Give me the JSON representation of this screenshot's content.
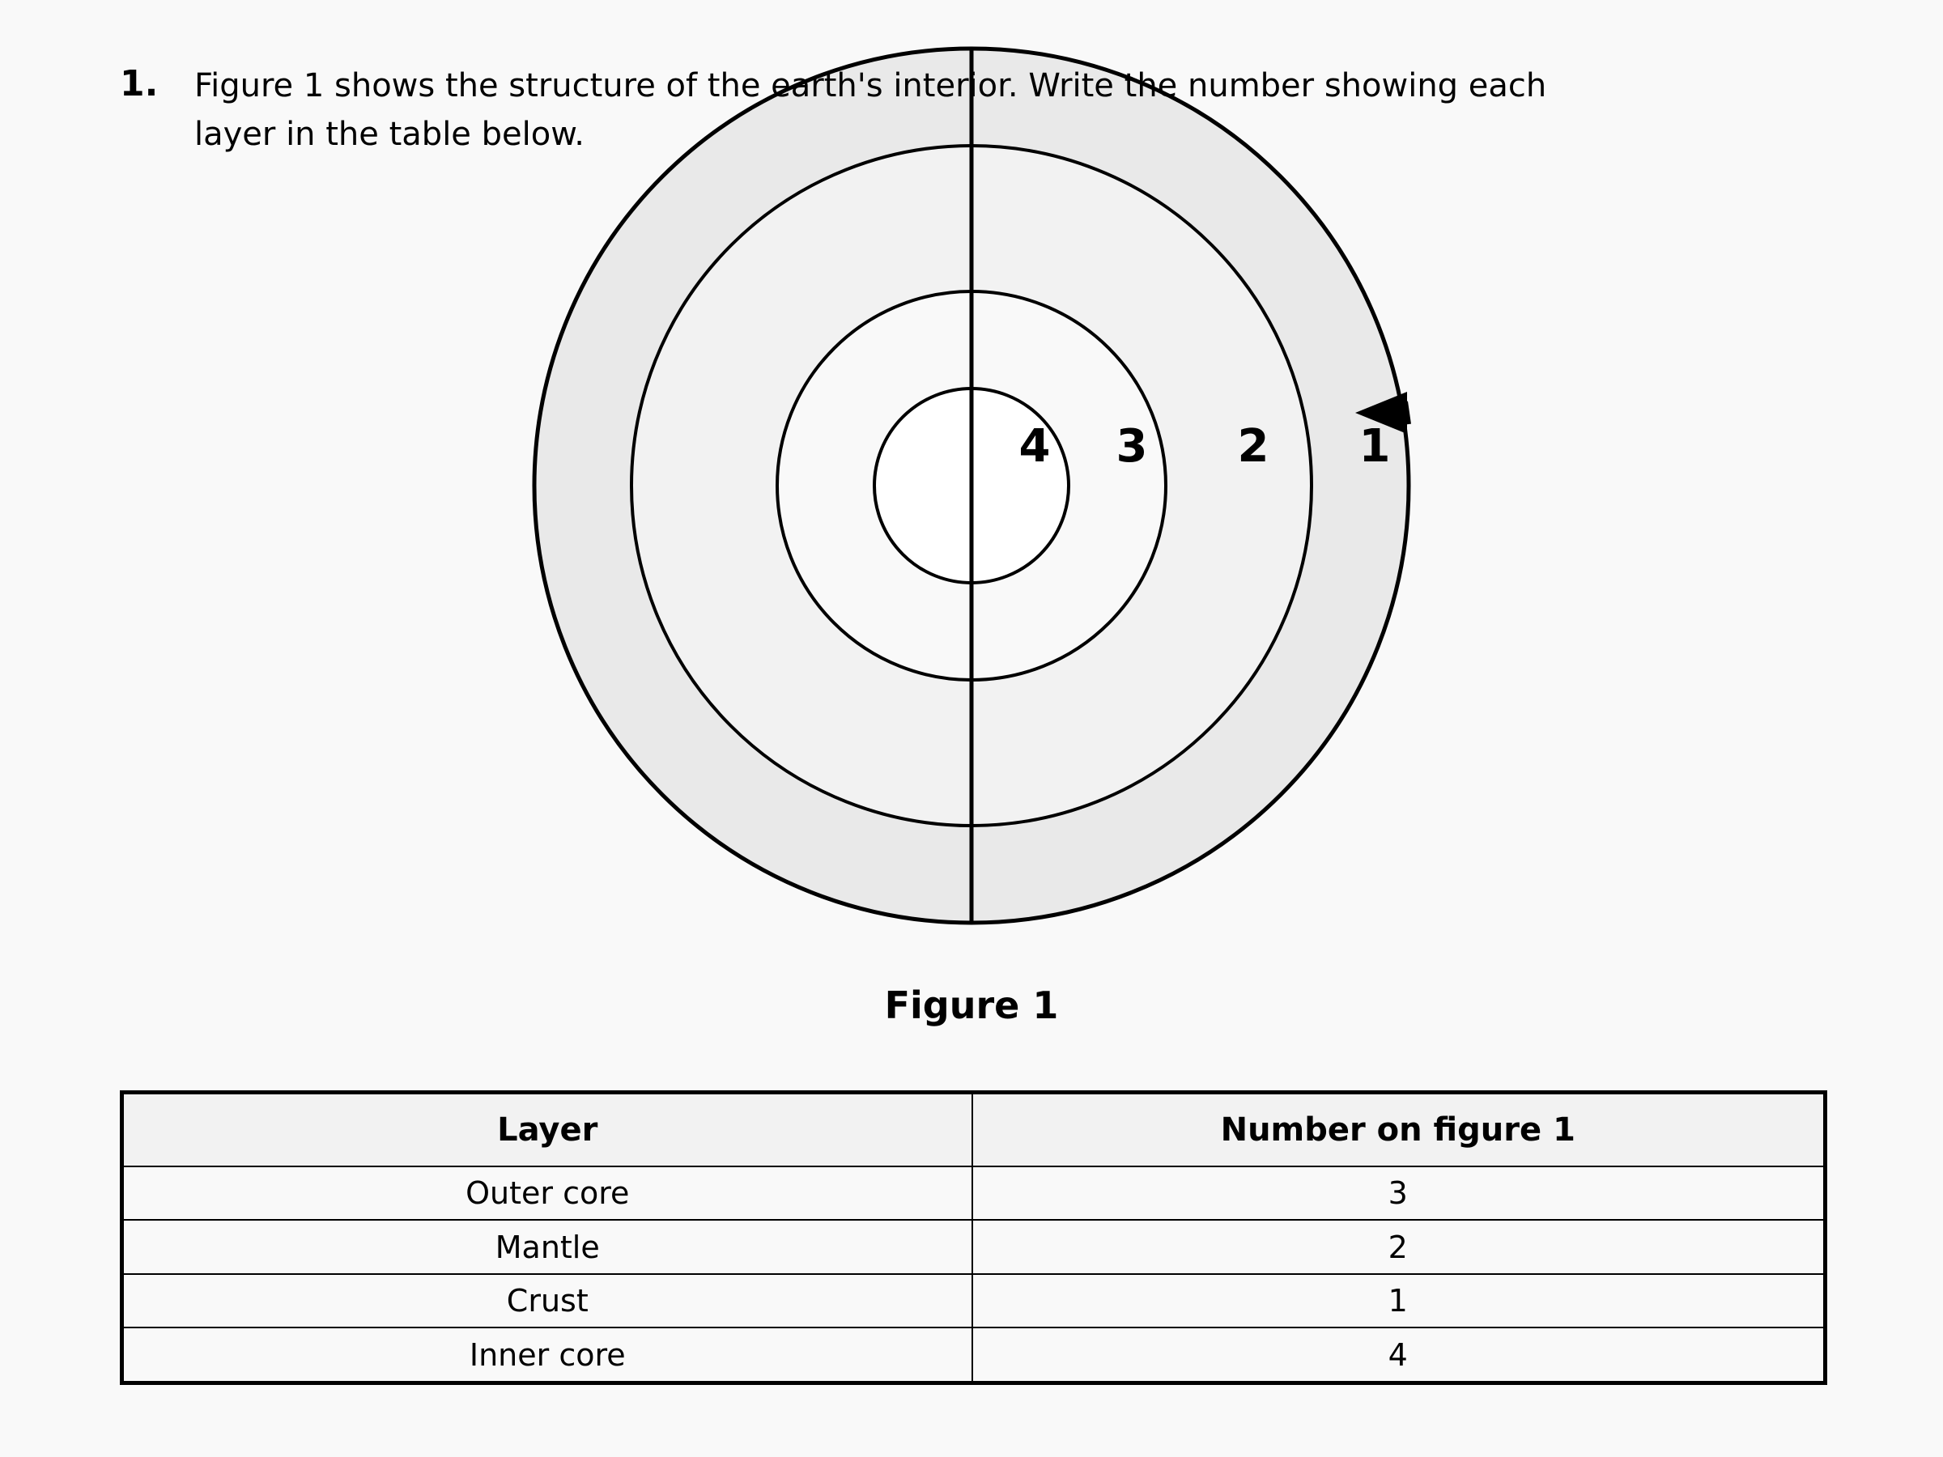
{
  "question": {
    "number": "1.",
    "text": "Figure 1 shows the structure of the earth's interior. Write the number showing each layer in the table below."
  },
  "figure": {
    "caption": "Figure 1",
    "layer_labels": [
      "4",
      "3",
      "2",
      "1"
    ],
    "colors": {
      "crust_fill": "#e9e9e9",
      "mantle_fill": "#f2f2f2",
      "outer_core_fill": "#f9f9f9",
      "inner_core_fill": "#ffffff",
      "stroke": "#000000"
    }
  },
  "table": {
    "headers": [
      "Layer",
      "Number on figure 1"
    ],
    "rows": [
      {
        "layer": "Outer core",
        "number": "3"
      },
      {
        "layer": "Mantle",
        "number": "2"
      },
      {
        "layer": "Crust",
        "number": "1"
      },
      {
        "layer": "Inner core",
        "number": "4"
      }
    ]
  }
}
